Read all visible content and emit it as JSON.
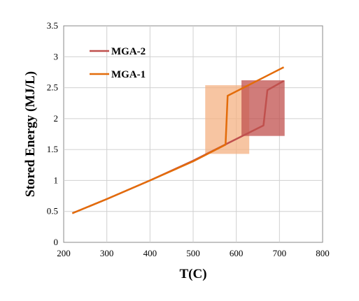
{
  "chart_data": {
    "type": "line",
    "title": "",
    "xlabel": "T(C)",
    "ylabel": "Stored Energy (MJ/L)",
    "xlim": [
      200,
      800
    ],
    "ylim": [
      0,
      3.5
    ],
    "x_ticks": [
      200,
      300,
      400,
      500,
      600,
      700,
      800
    ],
    "y_ticks": [
      0,
      0.5,
      1,
      1.5,
      2,
      2.5,
      3,
      3.5
    ],
    "x_tick_labels": [
      "200",
      "300",
      "400",
      "500",
      "600",
      "700",
      "800"
    ],
    "y_tick_labels": [
      "0",
      "0.5",
      "1",
      "1.5",
      "2",
      "2.5",
      "3",
      "3.5"
    ],
    "grid": true,
    "legend_position": "top-left",
    "series": [
      {
        "name": "MGA-2",
        "color": "#C0504D",
        "points": [
          [
            220,
            0.47
          ],
          [
            300,
            0.7
          ],
          [
            400,
            1.0
          ],
          [
            500,
            1.32
          ],
          [
            580,
            1.6
          ],
          [
            663,
            1.89
          ],
          [
            672,
            2.46
          ],
          [
            710,
            2.61
          ]
        ]
      },
      {
        "name": "MGA-1",
        "color": "#E36C0A",
        "points": [
          [
            220,
            0.47
          ],
          [
            300,
            0.7
          ],
          [
            400,
            1.0
          ],
          [
            500,
            1.31
          ],
          [
            575,
            1.58
          ],
          [
            580,
            2.37
          ],
          [
            710,
            2.83
          ]
        ]
      }
    ],
    "regions": [
      {
        "series": "MGA-1",
        "color": "#F4B183",
        "x": [
          528,
          630
        ],
        "y": [
          1.43,
          2.54
        ]
      },
      {
        "series": "MGA-2",
        "color": "#C0504D",
        "x": [
          612,
          712
        ],
        "y": [
          1.72,
          2.62
        ]
      }
    ]
  }
}
